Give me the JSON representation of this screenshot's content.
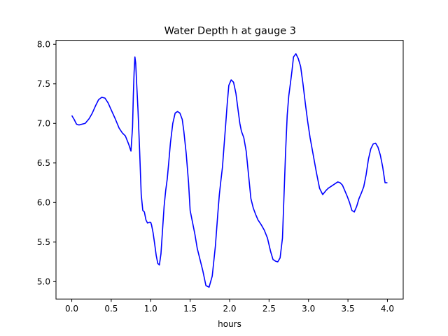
{
  "chart_data": {
    "type": "line",
    "title": "Water Depth h at gauge 3",
    "xlabel": "hours",
    "ylabel": "",
    "xlim": [
      -0.2,
      4.2
    ],
    "ylim": [
      4.78,
      8.05
    ],
    "xticks": [
      0.0,
      0.5,
      1.0,
      1.5,
      2.0,
      2.5,
      3.0,
      3.5,
      4.0
    ],
    "xtick_labels": [
      "0.0",
      "0.5",
      "1.0",
      "1.5",
      "2.0",
      "2.5",
      "3.0",
      "3.5",
      "4.0"
    ],
    "yticks": [
      5.0,
      5.5,
      6.0,
      6.5,
      7.0,
      7.5,
      8.0
    ],
    "ytick_labels": [
      "5.0",
      "5.5",
      "6.0",
      "6.5",
      "7.0",
      "7.5",
      "8.0"
    ],
    "grid": false,
    "line_color": "#0000ff",
    "series": [
      {
        "x": [
          0.0,
          0.03,
          0.06,
          0.09,
          0.13,
          0.17,
          0.22,
          0.26,
          0.3,
          0.34,
          0.38,
          0.42,
          0.46,
          0.5,
          0.55,
          0.6,
          0.64,
          0.68,
          0.72,
          0.75,
          0.77,
          0.78,
          0.79,
          0.8,
          0.81,
          0.82,
          0.84,
          0.86,
          0.88,
          0.9,
          0.92,
          0.94,
          0.96,
          0.98,
          1.0,
          1.01,
          1.03,
          1.05,
          1.07,
          1.09,
          1.11,
          1.13,
          1.15,
          1.17,
          1.19,
          1.21,
          1.23,
          1.25,
          1.28,
          1.31,
          1.34,
          1.37,
          1.4,
          1.42,
          1.45,
          1.48,
          1.5,
          1.53,
          1.56,
          1.59,
          1.62,
          1.66,
          1.7,
          1.74,
          1.78,
          1.82,
          1.85,
          1.87,
          1.89,
          1.91,
          1.93,
          1.95,
          1.97,
          1.99,
          2.02,
          2.05,
          2.08,
          2.11,
          2.13,
          2.15,
          2.18,
          2.21,
          2.24,
          2.27,
          2.3,
          2.33,
          2.36,
          2.4,
          2.44,
          2.48,
          2.52,
          2.55,
          2.58,
          2.61,
          2.64,
          2.67,
          2.69,
          2.71,
          2.73,
          2.75,
          2.77,
          2.79,
          2.81,
          2.84,
          2.87,
          2.9,
          2.93,
          2.96,
          2.99,
          3.02,
          3.06,
          3.1,
          3.14,
          3.18,
          3.22,
          3.25,
          3.28,
          3.31,
          3.34,
          3.37,
          3.4,
          3.43,
          3.46,
          3.49,
          3.52,
          3.55,
          3.58,
          3.61,
          3.64,
          3.67,
          3.7,
          3.73,
          3.76,
          3.79,
          3.82,
          3.85,
          3.88,
          3.91,
          3.94,
          3.97,
          4.0
        ],
        "y": [
          7.1,
          7.05,
          6.99,
          6.98,
          6.99,
          7.0,
          7.06,
          7.13,
          7.22,
          7.3,
          7.33,
          7.32,
          7.26,
          7.17,
          7.06,
          6.94,
          6.88,
          6.84,
          6.74,
          6.65,
          6.95,
          7.35,
          7.65,
          7.84,
          7.76,
          7.55,
          7.15,
          6.65,
          6.1,
          5.9,
          5.88,
          5.78,
          5.74,
          5.75,
          5.75,
          5.72,
          5.62,
          5.48,
          5.33,
          5.23,
          5.21,
          5.35,
          5.65,
          5.95,
          6.15,
          6.3,
          6.52,
          6.75,
          7.0,
          7.13,
          7.15,
          7.13,
          7.05,
          6.9,
          6.62,
          6.25,
          5.9,
          5.75,
          5.6,
          5.42,
          5.3,
          5.14,
          4.95,
          4.93,
          5.07,
          5.45,
          5.85,
          6.1,
          6.28,
          6.45,
          6.72,
          6.98,
          7.25,
          7.48,
          7.55,
          7.52,
          7.38,
          7.15,
          7.0,
          6.9,
          6.82,
          6.65,
          6.35,
          6.05,
          5.93,
          5.85,
          5.78,
          5.72,
          5.65,
          5.55,
          5.38,
          5.28,
          5.26,
          5.25,
          5.3,
          5.55,
          6.1,
          6.65,
          7.1,
          7.35,
          7.5,
          7.66,
          7.84,
          7.88,
          7.82,
          7.72,
          7.5,
          7.25,
          7.02,
          6.82,
          6.6,
          6.38,
          6.18,
          6.1,
          6.15,
          6.18,
          6.2,
          6.22,
          6.24,
          6.26,
          6.25,
          6.22,
          6.15,
          6.08,
          6.0,
          5.9,
          5.88,
          5.95,
          6.05,
          6.12,
          6.2,
          6.35,
          6.55,
          6.68,
          6.74,
          6.75,
          6.7,
          6.6,
          6.45,
          6.25,
          6.25
        ]
      }
    ]
  }
}
